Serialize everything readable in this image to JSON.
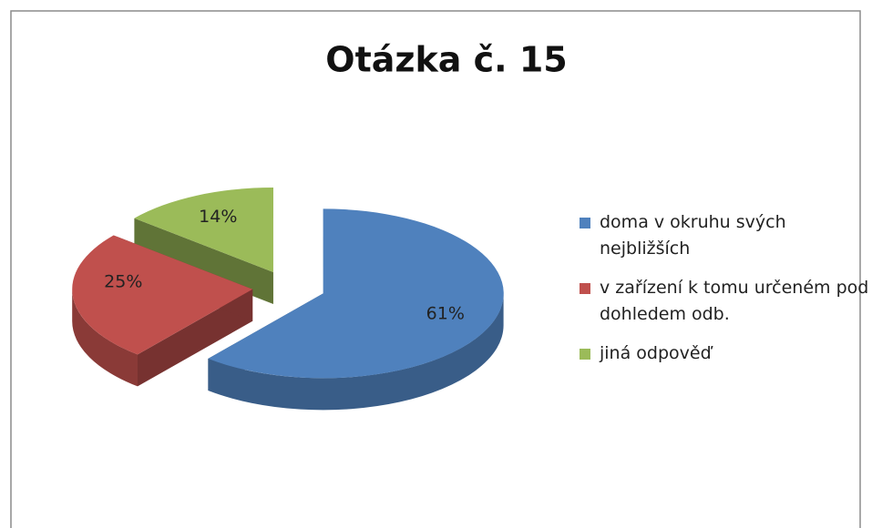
{
  "chart_data": {
    "type": "pie",
    "title": "Otázka č. 15",
    "categories": [
      "doma v okruhu svých nejbližších",
      "v zařízení k tomu určeném pod dohledem odb.",
      "jiná odpověď"
    ],
    "values": [
      61,
      25,
      14
    ],
    "value_labels": [
      "61%",
      "25%",
      "14%"
    ],
    "colors": [
      "#4f81bd",
      "#c0504d",
      "#9bbb59"
    ]
  }
}
